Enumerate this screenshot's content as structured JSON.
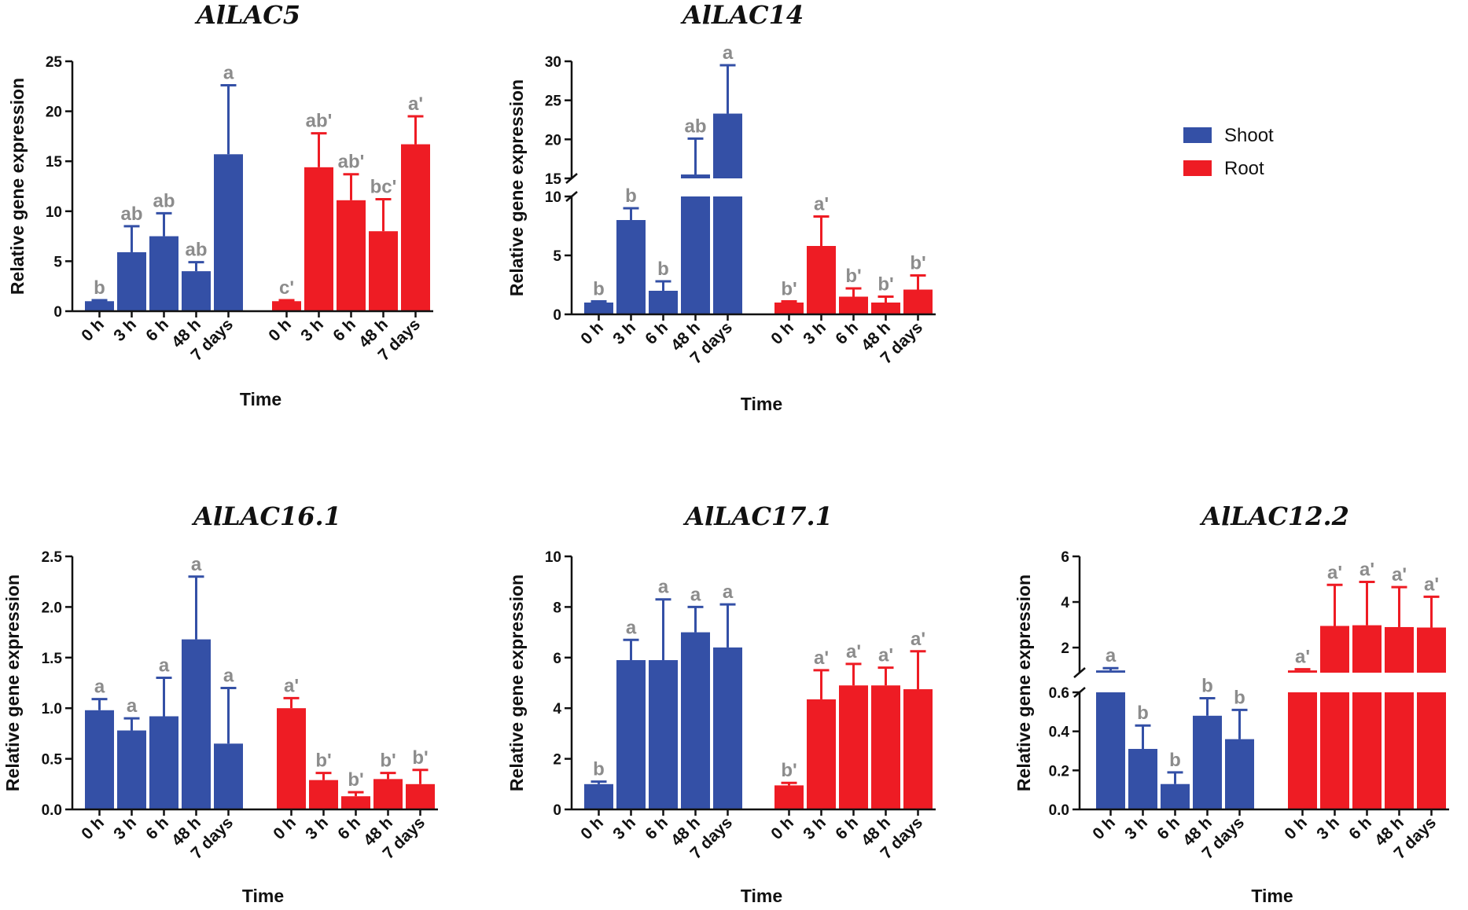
{
  "colors": {
    "shoot": "#3450A6",
    "root": "#EE1C24",
    "axis": "#111111",
    "letters": "#8C8C8C"
  },
  "legend": {
    "shoot": "Shoot",
    "root": "Root"
  },
  "chart_data": [
    {
      "type": "bar",
      "title": "AlLAC5",
      "xlabel": "Time",
      "ylabel": "Relative gene expression",
      "categories": [
        "0 h",
        "3 h",
        "6 h",
        "48 h",
        "7 days"
      ],
      "yticks": [
        "0",
        "5",
        "10",
        "15",
        "20",
        "25"
      ],
      "ylim": [
        0,
        25
      ],
      "series": [
        {
          "name": "Shoot",
          "values": [
            1.0,
            5.9,
            7.5,
            4.0,
            15.7
          ],
          "errors": [
            0.1,
            2.6,
            2.3,
            0.9,
            6.9
          ],
          "letters": [
            "b",
            "ab",
            "ab",
            "ab",
            "a"
          ]
        },
        {
          "name": "Root",
          "values": [
            1.0,
            14.4,
            11.1,
            8.0,
            16.7
          ],
          "errors": [
            0.1,
            3.4,
            2.6,
            3.2,
            2.8
          ],
          "letters": [
            "c'",
            "ab'",
            "ab'",
            "bc'",
            "a'"
          ]
        }
      ]
    },
    {
      "type": "bar",
      "title": "AlLAC14",
      "xlabel": "Time",
      "ylabel": "Relative gene expression",
      "categories": [
        "0 h",
        "3 h",
        "6 h",
        "48 h",
        "7 days"
      ],
      "yticks": [
        "0",
        "5",
        "10",
        "15",
        "20",
        "25",
        "30"
      ],
      "ylim": [
        0,
        30
      ],
      "axis_break": [
        10,
        15
      ],
      "series": [
        {
          "name": "Shoot",
          "values": [
            1.0,
            8.0,
            2.0,
            15.5,
            23.3
          ],
          "errors": [
            0.1,
            1.0,
            0.8,
            4.6,
            6.2
          ],
          "letters": [
            "b",
            "b",
            "b",
            "ab",
            "a"
          ]
        },
        {
          "name": "Root",
          "values": [
            1.0,
            5.8,
            1.5,
            1.0,
            2.1
          ],
          "errors": [
            0.1,
            2.5,
            0.7,
            0.5,
            1.2
          ],
          "letters": [
            "b'",
            "a'",
            "b'",
            "b'",
            "b'"
          ]
        }
      ]
    },
    {
      "type": "bar",
      "title": "AlLAC16.1",
      "xlabel": "Time",
      "ylabel": "Relative gene expression",
      "categories": [
        "0 h",
        "3 h",
        "6 h",
        "48 h",
        "7 days"
      ],
      "yticks": [
        "0.0",
        "0.5",
        "1.0",
        "1.5",
        "2.0",
        "2.5"
      ],
      "ylim": [
        0,
        2.5
      ],
      "series": [
        {
          "name": "Shoot",
          "values": [
            0.98,
            0.78,
            0.92,
            1.68,
            0.65
          ],
          "errors": [
            0.11,
            0.12,
            0.38,
            0.62,
            0.55
          ],
          "letters": [
            "a",
            "a",
            "a",
            "a",
            "a"
          ]
        },
        {
          "name": "Root",
          "values": [
            1.0,
            0.29,
            0.13,
            0.3,
            0.25
          ],
          "errors": [
            0.1,
            0.07,
            0.04,
            0.06,
            0.14
          ],
          "letters": [
            "a'",
            "b'",
            "b'",
            "b'",
            "b'"
          ]
        }
      ]
    },
    {
      "type": "bar",
      "title": "AlLAC17.1",
      "xlabel": "Time",
      "ylabel": "Relative gene expression",
      "categories": [
        "0 h",
        "3 h",
        "6 h",
        "48 h",
        "7 days"
      ],
      "yticks": [
        "0",
        "2",
        "4",
        "6",
        "8",
        "10"
      ],
      "ylim": [
        0,
        10
      ],
      "series": [
        {
          "name": "Shoot",
          "values": [
            1.0,
            5.9,
            5.9,
            7.0,
            6.4
          ],
          "errors": [
            0.1,
            0.8,
            2.4,
            1.0,
            1.7
          ],
          "letters": [
            "b",
            "a",
            "a",
            "a",
            "a"
          ]
        },
        {
          "name": "Root",
          "values": [
            0.95,
            4.35,
            4.9,
            4.9,
            4.75
          ],
          "errors": [
            0.1,
            1.15,
            0.85,
            0.7,
            1.5
          ],
          "letters": [
            "b'",
            "a'",
            "a'",
            "a'",
            "a'"
          ]
        }
      ]
    },
    {
      "type": "bar",
      "title": "AlLAC12.2",
      "xlabel": "Time",
      "ylabel": "Relative gene expression",
      "categories": [
        "0 h",
        "3 h",
        "6 h",
        "48 h",
        "7 days"
      ],
      "yticks": [
        "0.0",
        "0.2",
        "0.4",
        "0.6",
        "2",
        "4",
        "6"
      ],
      "ylim": [
        0,
        6
      ],
      "axis_break": [
        0.6,
        0.9
      ],
      "series": [
        {
          "name": "Shoot",
          "values": [
            1.0,
            0.31,
            0.13,
            0.48,
            0.36
          ],
          "errors": [
            0.1,
            0.12,
            0.06,
            0.09,
            0.15
          ],
          "letters": [
            "a",
            "b",
            "b",
            "b",
            "b"
          ]
        },
        {
          "name": "Root",
          "values": [
            1.0,
            2.95,
            2.98,
            2.9,
            2.88
          ],
          "errors": [
            0.05,
            1.8,
            1.9,
            1.75,
            1.35
          ],
          "letters": [
            "a'",
            "a'",
            "a'",
            "a'",
            "a'"
          ]
        }
      ]
    }
  ]
}
